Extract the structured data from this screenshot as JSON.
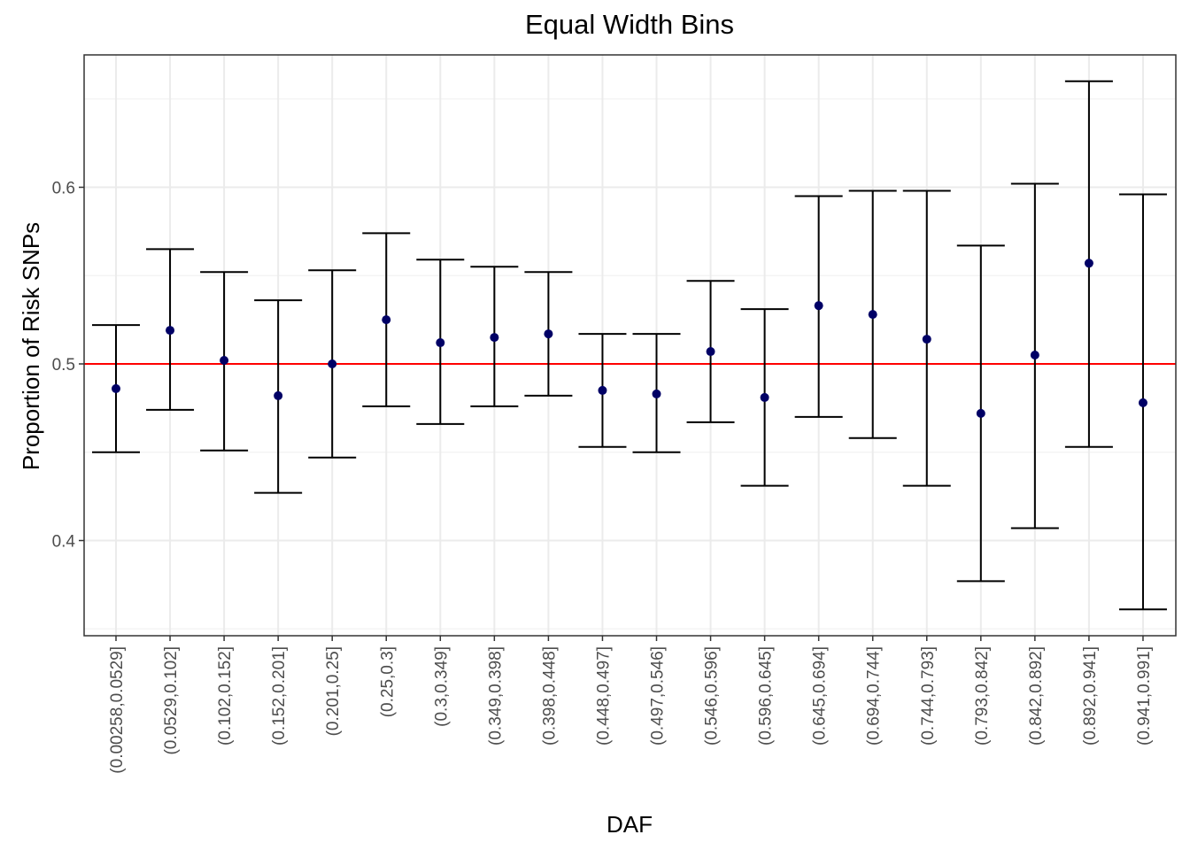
{
  "chart_data": {
    "type": "scatter",
    "title": "Equal Width Bins",
    "xlabel": "DAF",
    "ylabel": "Proportion of Risk SNPs",
    "categories": [
      "(0.00258,0.0529]",
      "(0.0529,0.102]",
      "(0.102,0.152]",
      "(0.152,0.201]",
      "(0.201,0.25]",
      "(0.25,0.3]",
      "(0.3,0.349]",
      "(0.349,0.398]",
      "(0.398,0.448]",
      "(0.448,0.497]",
      "(0.497,0.546]",
      "(0.546,0.596]",
      "(0.596,0.645]",
      "(0.645,0.694]",
      "(0.694,0.744]",
      "(0.744,0.793]",
      "(0.793,0.842]",
      "(0.842,0.892]",
      "(0.892,0.941]",
      "(0.941,0.991]"
    ],
    "values": [
      0.486,
      0.519,
      0.502,
      0.482,
      0.5,
      0.525,
      0.512,
      0.515,
      0.517,
      0.485,
      0.483,
      0.507,
      0.481,
      0.533,
      0.528,
      0.514,
      0.472,
      0.505,
      0.557,
      0.478
    ],
    "lower": [
      0.45,
      0.474,
      0.451,
      0.427,
      0.447,
      0.476,
      0.466,
      0.476,
      0.482,
      0.453,
      0.45,
      0.467,
      0.431,
      0.47,
      0.458,
      0.431,
      0.377,
      0.407,
      0.453,
      0.361
    ],
    "upper": [
      0.522,
      0.565,
      0.552,
      0.536,
      0.553,
      0.574,
      0.559,
      0.555,
      0.552,
      0.517,
      0.517,
      0.547,
      0.531,
      0.595,
      0.598,
      0.598,
      0.567,
      0.602,
      0.66,
      0.596
    ],
    "reference_line": 0.5,
    "ylim": [
      0.35,
      0.667
    ],
    "yticks": [
      0.4,
      0.5,
      0.6
    ],
    "ytick_labels": [
      "0.4",
      "0.5",
      "0.6"
    ],
    "grid": true,
    "colors": {
      "point": "#000066",
      "errorbar": "#000000",
      "reference_line": "#ff0000",
      "grid_major": "#ebebeb",
      "grid_minor": "#f2f2f2",
      "panel_border": "#333333"
    }
  }
}
